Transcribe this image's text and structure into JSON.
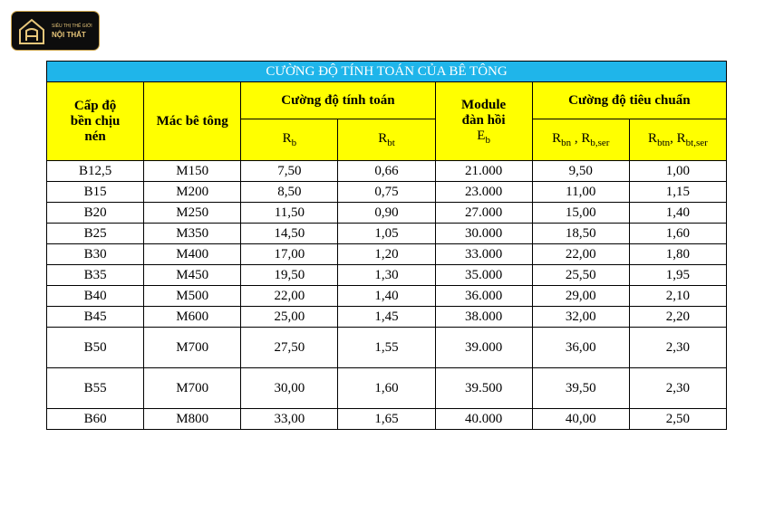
{
  "logo": {
    "line1": "SIÊU THỊ THẾ GIỚI",
    "line2": "NỘI THẤT"
  },
  "table": {
    "title": "CƯỜNG ĐỘ TÍNH TOÁN CỦA BÊ TÔNG",
    "headers": {
      "grade": "Cấp độ bền chịu nén",
      "mark": "Mác bê tông",
      "design": "Cường độ tính toán",
      "module": {
        "text": "Module đàn hồi",
        "symbol": "E",
        "sub": "b"
      },
      "standard": "Cường độ tiêu chuẩn",
      "sub_headers": [
        [
          {
            "text": "R"
          },
          {
            "sub": "b"
          }
        ],
        [
          {
            "text": "R"
          },
          {
            "sub": "bt"
          }
        ],
        [
          {
            "text": "R"
          },
          {
            "sub": "bn"
          },
          {
            "text": " ,  R"
          },
          {
            "sub": "b,ser"
          }
        ],
        [
          {
            "text": "R"
          },
          {
            "sub": "btn"
          },
          {
            "text": ",  R"
          },
          {
            "sub": "bt,ser"
          }
        ]
      ]
    },
    "rows": [
      [
        "B12,5",
        "M150",
        "7,50",
        "0,66",
        "21.000",
        "9,50",
        "1,00"
      ],
      [
        "B15",
        "M200",
        "8,50",
        "0,75",
        "23.000",
        "11,00",
        "1,15"
      ],
      [
        "B20",
        "M250",
        "11,50",
        "0,90",
        "27.000",
        "15,00",
        "1,40"
      ],
      [
        "B25",
        "M350",
        "14,50",
        "1,05",
        "30.000",
        "18,50",
        "1,60"
      ],
      [
        "B30",
        "M400",
        "17,00",
        "1,20",
        "33.000",
        "22,00",
        "1,80"
      ],
      [
        "B35",
        "M450",
        "19,50",
        "1,30",
        "35.000",
        "25,50",
        "1,95"
      ],
      [
        "B40",
        "M500",
        "22,00",
        "1,40",
        "36.000",
        "29,00",
        "2,10"
      ],
      [
        "B45",
        "M600",
        "25,00",
        "1,45",
        "38.000",
        "32,00",
        "2,20"
      ],
      [
        "B50",
        "M700",
        "27,50",
        "1,55",
        "39.000",
        "36,00",
        "2,30"
      ],
      [
        "B55",
        "M700",
        "30,00",
        "1,60",
        "39.500",
        "39,50",
        "2,30"
      ],
      [
        "B60",
        "M800",
        "33,00",
        "1,65",
        "40.000",
        "40,00",
        "2,50"
      ]
    ]
  }
}
